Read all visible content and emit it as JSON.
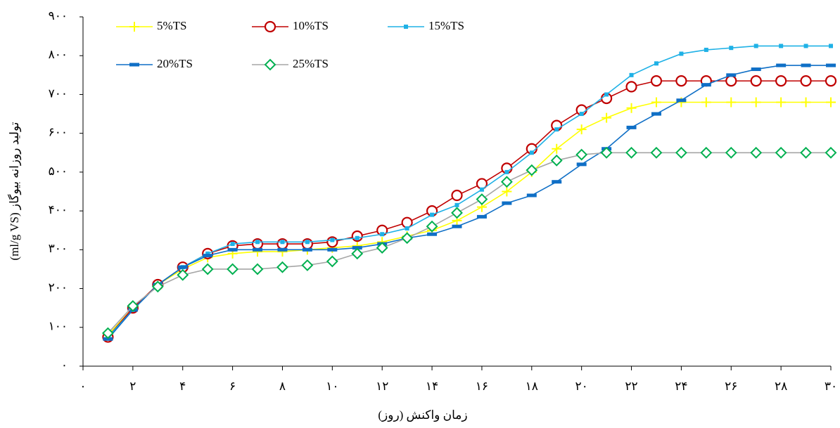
{
  "chart_data": {
    "type": "line",
    "x_label": "زمان واکنش (روز)",
    "y_label": "(ml/g VS) تولید روزانه بیوگاز",
    "x": [
      1,
      2,
      3,
      4,
      5,
      6,
      7,
      8,
      9,
      10,
      11,
      12,
      13,
      14,
      15,
      16,
      17,
      18,
      19,
      20,
      21,
      22,
      23,
      24,
      25,
      26,
      27,
      28,
      29,
      30
    ],
    "series": [
      {
        "name": "5%TS",
        "color": "#ffff00",
        "marker": "plus",
        "values": [
          80,
          150,
          210,
          250,
          280,
          290,
          295,
          295,
          300,
          305,
          310,
          320,
          335,
          350,
          375,
          410,
          450,
          500,
          560,
          610,
          640,
          665,
          680,
          680,
          680,
          680,
          680,
          680,
          680,
          680
        ]
      },
      {
        "name": "10%TS",
        "color": "#c00000",
        "marker": "circle",
        "values": [
          75,
          150,
          210,
          255,
          290,
          310,
          315,
          315,
          315,
          320,
          335,
          350,
          370,
          400,
          440,
          470,
          510,
          560,
          620,
          660,
          690,
          720,
          735,
          735,
          735,
          735,
          735,
          735,
          735,
          735
        ]
      },
      {
        "name": "15%TS",
        "color": "#1fb1e6",
        "marker": "square",
        "values": [
          75,
          145,
          210,
          255,
          290,
          315,
          320,
          320,
          320,
          325,
          330,
          340,
          355,
          390,
          415,
          455,
          500,
          550,
          610,
          650,
          700,
          750,
          780,
          805,
          815,
          820,
          825,
          825,
          825,
          825
        ]
      },
      {
        "name": "20%TS",
        "color": "#0f6fc6",
        "marker": "dash",
        "values": [
          70,
          145,
          210,
          255,
          285,
          300,
          300,
          300,
          300,
          300,
          305,
          315,
          330,
          340,
          360,
          385,
          420,
          440,
          475,
          520,
          560,
          615,
          650,
          685,
          725,
          750,
          765,
          775,
          775,
          775
        ]
      },
      {
        "name": "25%TS",
        "color": "#a6a6a6",
        "marker": "diamond",
        "marker_color": "#00b050",
        "values": [
          85,
          155,
          205,
          235,
          250,
          250,
          250,
          255,
          260,
          270,
          290,
          305,
          330,
          360,
          395,
          430,
          475,
          505,
          530,
          545,
          550,
          550,
          550,
          550,
          550,
          550,
          550,
          550,
          550,
          550
        ]
      }
    ],
    "xlim": [
      0,
      30
    ],
    "xticks": [
      {
        "value": 0,
        "label": "۰"
      },
      {
        "value": 2,
        "label": "۲"
      },
      {
        "value": 4,
        "label": "۴"
      },
      {
        "value": 6,
        "label": "۶"
      },
      {
        "value": 8,
        "label": "۸"
      },
      {
        "value": 10,
        "label": "۱۰"
      },
      {
        "value": 12,
        "label": "۱۲"
      },
      {
        "value": 14,
        "label": "۱۴"
      },
      {
        "value": 16,
        "label": "۱۶"
      },
      {
        "value": 18,
        "label": "۱۸"
      },
      {
        "value": 20,
        "label": "۲۰"
      },
      {
        "value": 22,
        "label": "۲۲"
      },
      {
        "value": 24,
        "label": "۲۴"
      },
      {
        "value": 26,
        "label": "۲۶"
      },
      {
        "value": 28,
        "label": "۲۸"
      },
      {
        "value": 30,
        "label": "۳۰"
      }
    ],
    "ylim": [
      0,
      900
    ],
    "yticks": [
      {
        "value": 0,
        "label": "۰"
      },
      {
        "value": 100,
        "label": "۱۰۰"
      },
      {
        "value": 200,
        "label": "۲۰۰"
      },
      {
        "value": 300,
        "label": "۳۰۰"
      },
      {
        "value": 400,
        "label": "۴۰۰"
      },
      {
        "value": 500,
        "label": "۵۰۰"
      },
      {
        "value": 600,
        "label": "۶۰۰"
      },
      {
        "value": 700,
        "label": "۷۰۰"
      },
      {
        "value": 800,
        "label": "۸۰۰"
      },
      {
        "value": 900,
        "label": "۹۰۰"
      }
    ],
    "grid": false,
    "legend": "top-left"
  }
}
